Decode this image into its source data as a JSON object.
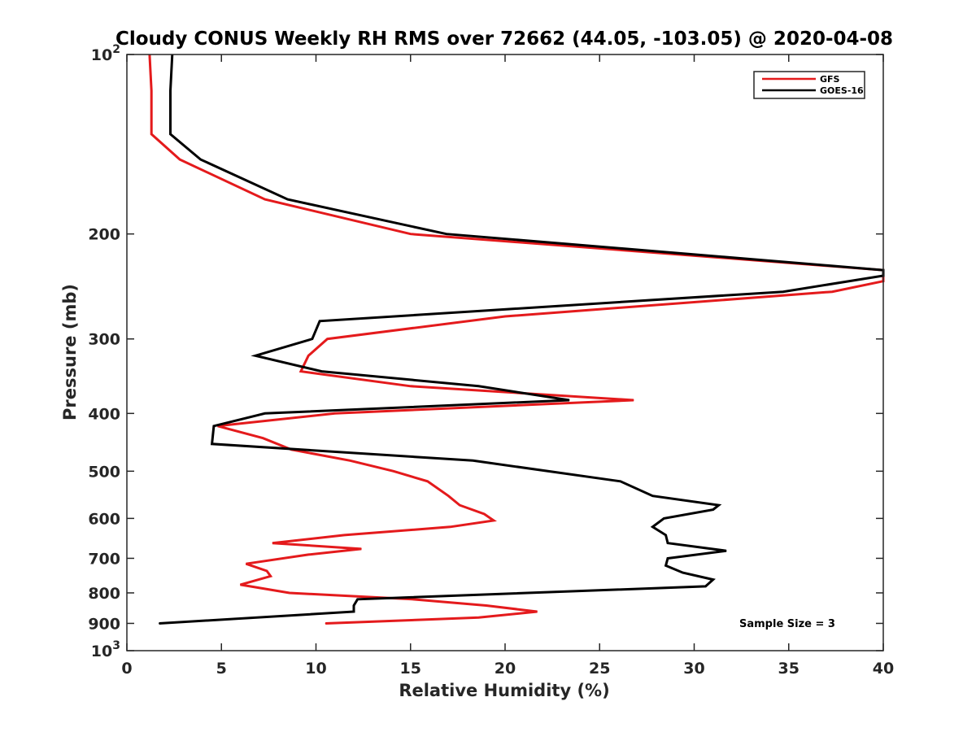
{
  "chart_data": {
    "type": "line",
    "title": "Cloudy CONUS Weekly RH RMS over 72662 (44.05, -103.05) @ 2020-04-08",
    "xlabel": "Relative Humidity (%)",
    "ylabel": "Pressure (mb)",
    "xlim": [
      0,
      40
    ],
    "ylim": [
      100,
      1000
    ],
    "y_scale": "log",
    "y_reversed": true,
    "grid": false,
    "legend_position": "top-right",
    "x_ticks": [
      "0",
      "5",
      "10",
      "15",
      "20",
      "25",
      "30",
      "35",
      "40"
    ],
    "y_ticks": [
      {
        "value": 100,
        "base": "10",
        "exp": "2"
      },
      {
        "value": 200,
        "label": "200"
      },
      {
        "value": 300,
        "label": "300"
      },
      {
        "value": 400,
        "label": "400"
      },
      {
        "value": 500,
        "label": "500"
      },
      {
        "value": 600,
        "label": "600"
      },
      {
        "value": 700,
        "label": "700"
      },
      {
        "value": 800,
        "label": "800"
      },
      {
        "value": 900,
        "label": "900"
      },
      {
        "value": 1000,
        "base": "10",
        "exp": "3"
      }
    ],
    "series": [
      {
        "name": "GFS",
        "color": "#e41a1c",
        "points": [
          [
            1.2,
            100
          ],
          [
            1.3,
            115
          ],
          [
            1.3,
            125
          ],
          [
            1.3,
            136
          ],
          [
            2.8,
            150
          ],
          [
            7.3,
            175
          ],
          [
            15.0,
            200
          ],
          [
            40.0,
            230
          ],
          [
            40.0,
            240
          ],
          [
            37.3,
            250
          ],
          [
            20.0,
            275
          ],
          [
            10.6,
            300
          ],
          [
            9.6,
            320
          ],
          [
            9.2,
            340
          ],
          [
            15.0,
            360
          ],
          [
            26.8,
            380
          ],
          [
            11.0,
            400
          ],
          [
            4.8,
            420
          ],
          [
            7.2,
            440
          ],
          [
            8.7,
            460
          ],
          [
            11.8,
            480
          ],
          [
            14.1,
            500
          ],
          [
            15.9,
            520
          ],
          [
            17.0,
            550
          ],
          [
            17.6,
            570
          ],
          [
            18.9,
            590
          ],
          [
            19.4,
            605
          ],
          [
            17.1,
            620
          ],
          [
            11.5,
            640
          ],
          [
            7.7,
            660
          ],
          [
            12.4,
            675
          ],
          [
            9.6,
            690
          ],
          [
            6.3,
            715
          ],
          [
            7.4,
            735
          ],
          [
            7.6,
            750
          ],
          [
            6.0,
            775
          ],
          [
            8.6,
            800
          ],
          [
            15.1,
            820
          ],
          [
            19.0,
            840
          ],
          [
            21.7,
            860
          ],
          [
            18.6,
            880
          ],
          [
            10.5,
            900
          ]
        ]
      },
      {
        "name": "GOES-16",
        "color": "#000000",
        "points": [
          [
            2.4,
            100
          ],
          [
            2.3,
            115
          ],
          [
            2.3,
            125
          ],
          [
            2.3,
            136
          ],
          [
            3.9,
            150
          ],
          [
            8.5,
            175
          ],
          [
            16.9,
            200
          ],
          [
            40.0,
            230
          ],
          [
            40.0,
            235
          ],
          [
            34.7,
            250
          ],
          [
            10.2,
            280
          ],
          [
            9.8,
            300
          ],
          [
            6.8,
            320
          ],
          [
            10.3,
            340
          ],
          [
            18.6,
            360
          ],
          [
            23.4,
            380
          ],
          [
            7.3,
            400
          ],
          [
            4.6,
            420
          ],
          [
            4.5,
            450
          ],
          [
            18.3,
            480
          ],
          [
            26.1,
            520
          ],
          [
            27.8,
            550
          ],
          [
            31.3,
            570
          ],
          [
            31.0,
            580
          ],
          [
            28.4,
            600
          ],
          [
            27.8,
            620
          ],
          [
            28.5,
            640
          ],
          [
            28.6,
            660
          ],
          [
            31.7,
            680
          ],
          [
            28.6,
            700
          ],
          [
            28.5,
            720
          ],
          [
            29.4,
            740
          ],
          [
            31.0,
            760
          ],
          [
            30.6,
            780
          ],
          [
            12.2,
            820
          ],
          [
            12.0,
            840
          ],
          [
            12.0,
            860
          ],
          [
            1.7,
            900
          ]
        ]
      }
    ],
    "annotations": [
      "Sample Size = 3"
    ]
  }
}
